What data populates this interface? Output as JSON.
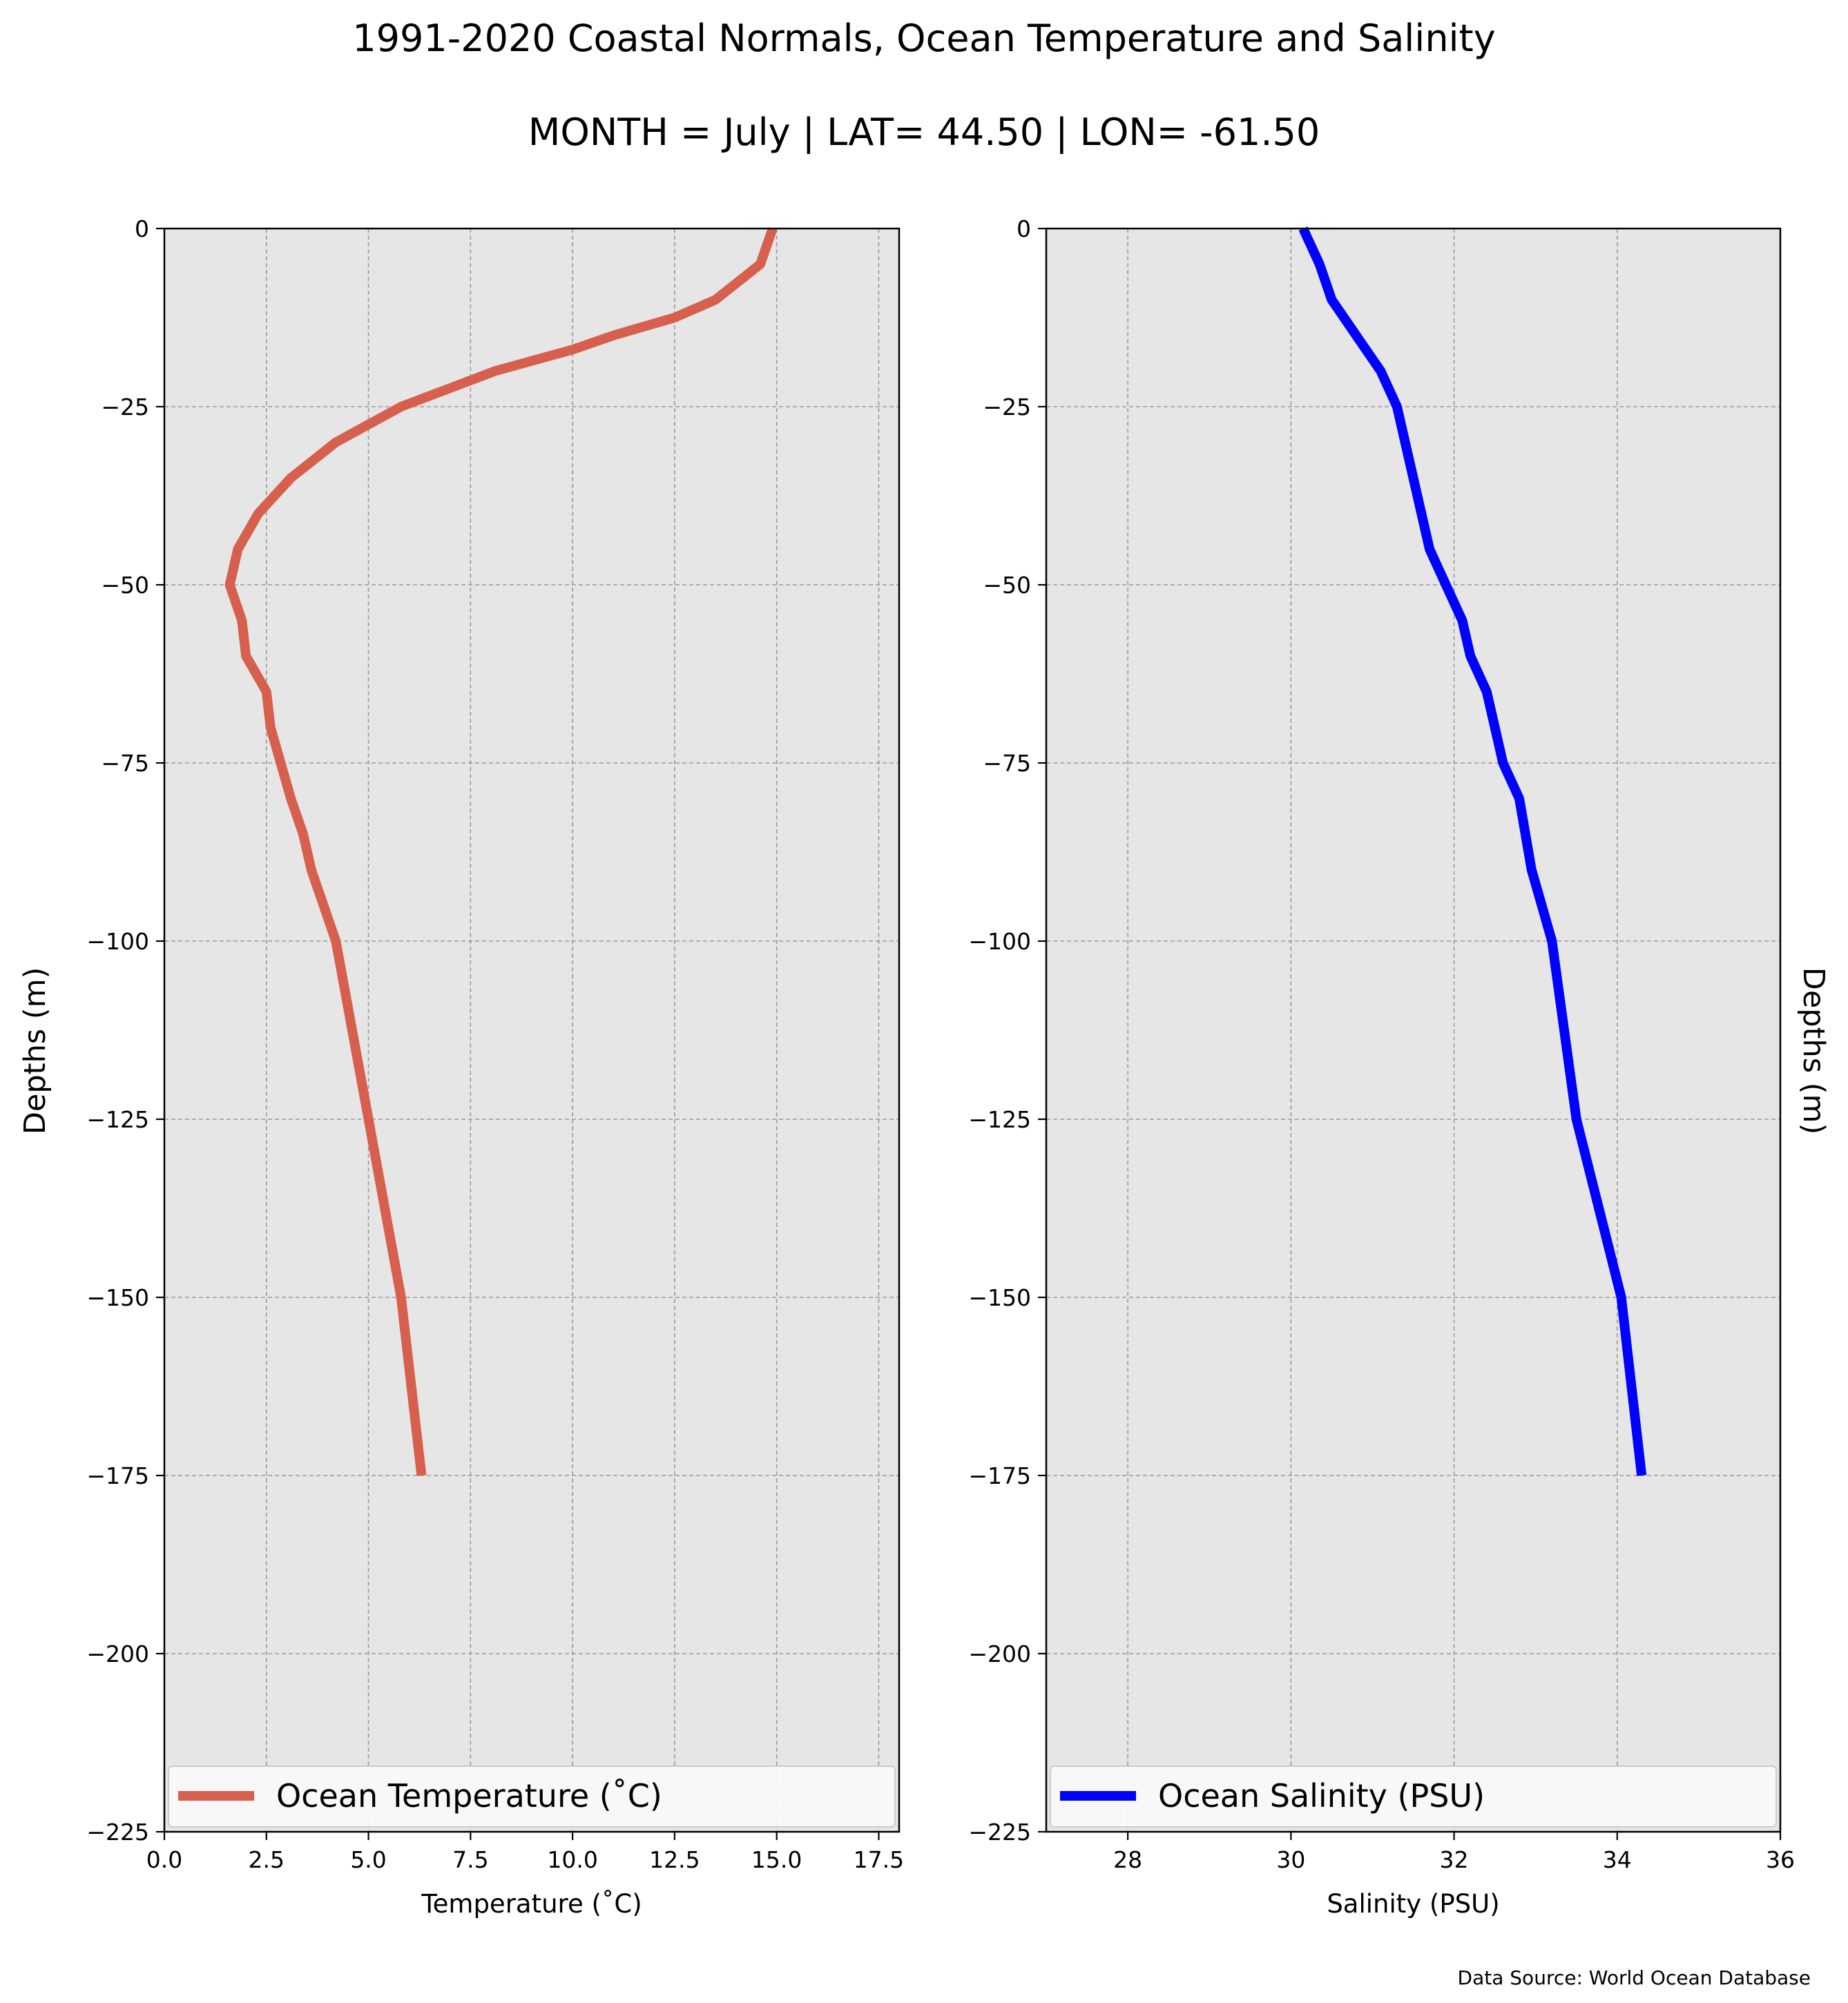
{
  "title": "1991-2020 Coastal Normals, Ocean Temperature and Salinity",
  "subtitle": "MONTH = July | LAT= 44.50 | LON= -61.50",
  "source_note": "Data Source: World Ocean Database",
  "colors": {
    "temperature": "#d6604d",
    "salinity": "#0000ff",
    "plot_bg": "#e6e6e6",
    "grid": "#9a9a9a"
  },
  "chart_data": [
    {
      "type": "line",
      "xlabel": "Temperature ($^\\circ$C)",
      "xlabel_display": "Temperature (˚C)",
      "ylabel": "Depths (m)",
      "xlim": [
        0,
        18
      ],
      "ylim": [
        -225,
        0
      ],
      "xticks": [
        0,
        2.5,
        5,
        7.5,
        10,
        12.5,
        15,
        17.5
      ],
      "xtick_labels": [
        "0.0",
        "2.5",
        "5.0",
        "7.5",
        "10.0",
        "12.5",
        "15.0",
        "17.5"
      ],
      "yticks": [
        0,
        -25,
        -50,
        -75,
        -100,
        -125,
        -150,
        -175,
        -200,
        -225
      ],
      "ytick_labels": [
        "0",
        "−25",
        "−50",
        "−75",
        "−100",
        "−125",
        "−150",
        "−175",
        "−200",
        "−225"
      ],
      "grid": true,
      "legend_position": "bottom",
      "series": [
        {
          "name": "Ocean Temperature (˚C)",
          "x": [
            14.9,
            14.6,
            13.5,
            12.5,
            11.0,
            10.0,
            8.1,
            5.8,
            4.2,
            3.1,
            2.3,
            1.8,
            1.6,
            1.9,
            2.0,
            2.5,
            2.6,
            3.1,
            3.4,
            3.6,
            4.2,
            5.0,
            5.8,
            6.3
          ],
          "y": [
            0,
            -5,
            -10,
            -12.5,
            -15,
            -17,
            -20,
            -25,
            -30,
            -35,
            -40,
            -45,
            -50,
            -55,
            -60,
            -65,
            -70,
            -80,
            -85,
            -90,
            -100,
            -125,
            -150,
            -175
          ]
        }
      ]
    },
    {
      "type": "line",
      "xlabel": "Salinity (PSU)",
      "ylabel": "Depths (m)",
      "xlim": [
        27,
        36
      ],
      "ylim": [
        -225,
        0
      ],
      "xticks": [
        28,
        30,
        32,
        34,
        36
      ],
      "xtick_labels": [
        "28",
        "30",
        "32",
        "34",
        "36"
      ],
      "yticks": [
        0,
        -25,
        -50,
        -75,
        -100,
        -125,
        -150,
        -175,
        -200,
        -225
      ],
      "ytick_labels": [
        "0",
        "−25",
        "−50",
        "−75",
        "−100",
        "−125",
        "−150",
        "−175",
        "−200",
        "−225"
      ],
      "grid": true,
      "legend_position": "bottom",
      "series": [
        {
          "name": "Ocean Salinity (PSU)",
          "x": [
            30.15,
            30.35,
            30.5,
            30.8,
            31.1,
            31.3,
            31.5,
            31.7,
            31.9,
            32.1,
            32.2,
            32.4,
            32.6,
            32.8,
            32.95,
            33.2,
            33.5,
            34.05,
            34.3
          ],
          "y": [
            0,
            -5,
            -10,
            -15,
            -20,
            -25,
            -35,
            -45,
            -50,
            -55,
            -60,
            -65,
            -75,
            -80,
            -90,
            -100,
            -125,
            -150,
            -175
          ]
        }
      ]
    }
  ]
}
